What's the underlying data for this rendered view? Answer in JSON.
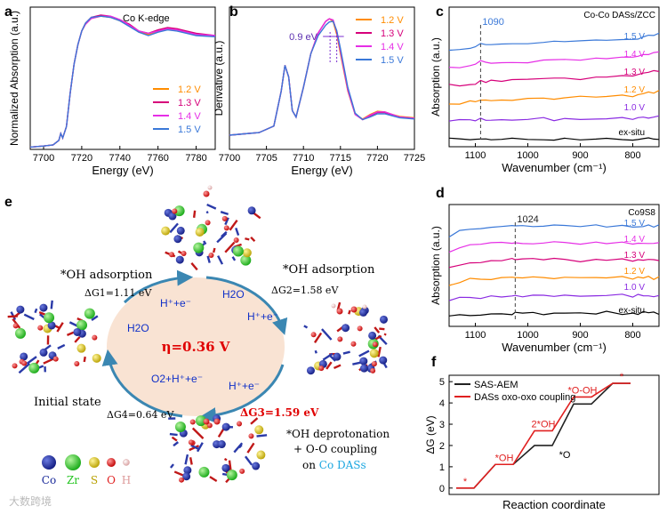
{
  "panels": {
    "a": "a",
    "b": "b",
    "c": "c",
    "d": "d",
    "e": "e",
    "f": "f"
  },
  "watermark": "大数跨境",
  "chart_data": [
    {
      "id": "a",
      "type": "line",
      "title": "Co K-edge",
      "xlabel": "Energy (eV)",
      "ylabel": "Normalized Absorption (a.u.)",
      "xlim": [
        7693,
        7790
      ],
      "ylim": [
        0,
        1.25
      ],
      "xticks": [
        7700,
        7720,
        7740,
        7760,
        7780
      ],
      "x": [
        7693,
        7700,
        7705,
        7708,
        7709,
        7710,
        7712,
        7714,
        7716,
        7718,
        7720,
        7722,
        7725,
        7730,
        7735,
        7740,
        7745,
        7750,
        7755,
        7760,
        7765,
        7770,
        7775,
        7780,
        7790
      ],
      "series": [
        {
          "name": "1.2 V",
          "color": "#ff8c00",
          "values": [
            0.02,
            0.03,
            0.04,
            0.08,
            0.14,
            0.1,
            0.2,
            0.5,
            0.75,
            0.92,
            1.04,
            1.1,
            1.15,
            1.17,
            1.16,
            1.13,
            1.09,
            1.03,
            1.01,
            1.04,
            1.06,
            1.05,
            1.03,
            1.01,
            1.0
          ]
        },
        {
          "name": "1.3 V",
          "color": "#d6007a",
          "values": [
            0.02,
            0.03,
            0.04,
            0.08,
            0.14,
            0.1,
            0.2,
            0.5,
            0.75,
            0.92,
            1.04,
            1.11,
            1.16,
            1.18,
            1.17,
            1.14,
            1.1,
            1.04,
            1.02,
            1.05,
            1.07,
            1.06,
            1.04,
            1.02,
            1.0
          ]
        },
        {
          "name": "1.4 V",
          "color": "#e62ee6",
          "values": [
            0.02,
            0.03,
            0.04,
            0.08,
            0.14,
            0.1,
            0.2,
            0.5,
            0.75,
            0.92,
            1.04,
            1.1,
            1.15,
            1.17,
            1.17,
            1.14,
            1.09,
            1.04,
            1.02,
            1.04,
            1.06,
            1.05,
            1.03,
            1.01,
            1.0
          ]
        },
        {
          "name": "1.5 V",
          "color": "#3a78d8",
          "values": [
            0.02,
            0.03,
            0.04,
            0.08,
            0.14,
            0.1,
            0.2,
            0.5,
            0.75,
            0.92,
            1.04,
            1.11,
            1.16,
            1.17,
            1.16,
            1.13,
            1.08,
            1.03,
            1.0,
            1.03,
            1.05,
            1.04,
            1.02,
            1.0,
            0.99
          ]
        }
      ]
    },
    {
      "id": "b",
      "type": "line",
      "xlabel": "Energy (eV)",
      "ylabel": "Derivative (a.u.)",
      "xlim": [
        7700,
        7725
      ],
      "ylim": [
        -1,
        10
      ],
      "xticks": [
        7700,
        7705,
        7710,
        7715,
        7720,
        7725
      ],
      "annotation": "0.9 eV",
      "x": [
        7700,
        7702,
        7704,
        7706,
        7707,
        7707.5,
        7708,
        7708.5,
        7709,
        7710,
        7711,
        7712,
        7713,
        7713.5,
        7714,
        7714.5,
        7715,
        7716,
        7717,
        7718,
        7719,
        7720,
        7721,
        7722,
        7723,
        7725
      ],
      "series": [
        {
          "name": "1.2 V",
          "color": "#ff8c00",
          "values": [
            0.1,
            0.2,
            0.3,
            0.8,
            3.5,
            5.5,
            4.6,
            2,
            1.5,
            3.8,
            6.4,
            8,
            8.9,
            9.1,
            8.9,
            7.9,
            6.4,
            3.5,
            1.7,
            1.35,
            1.7,
            1.95,
            1.9,
            1.7,
            1.55,
            1.45
          ]
        },
        {
          "name": "1.3 V",
          "color": "#d6007a",
          "values": [
            0.1,
            0.2,
            0.3,
            0.8,
            3.5,
            5.5,
            4.6,
            2,
            1.5,
            3.8,
            6.4,
            8,
            8.9,
            9.1,
            9,
            8.1,
            6.6,
            3.6,
            1.7,
            1.3,
            1.6,
            1.85,
            1.85,
            1.65,
            1.5,
            1.4
          ]
        },
        {
          "name": "1.4 V",
          "color": "#e62ee6",
          "values": [
            0.1,
            0.2,
            0.3,
            0.8,
            3.5,
            5.5,
            4.6,
            2,
            1.5,
            3.8,
            6.4,
            8,
            8.9,
            9.1,
            9,
            8.1,
            6.6,
            3.6,
            1.7,
            1.3,
            1.65,
            1.9,
            1.9,
            1.7,
            1.5,
            1.4
          ]
        },
        {
          "name": "1.5 V",
          "color": "#3a78d8",
          "values": [
            0.1,
            0.2,
            0.3,
            0.8,
            3.5,
            5.5,
            4.6,
            2,
            1.5,
            3.8,
            6.4,
            7.8,
            8.6,
            8.85,
            8.9,
            8.2,
            6.8,
            3.8,
            1.8,
            1.3,
            1.5,
            1.75,
            1.75,
            1.6,
            1.45,
            1.35
          ]
        }
      ]
    },
    {
      "id": "c",
      "type": "line",
      "title": "Co-Co DASs/ZCC",
      "xlabel": "Wavenumber (cm⁻¹)",
      "ylabel": "Absorption (a.u.)",
      "xlim": [
        1150,
        750
      ],
      "xticks": [
        1100,
        1000,
        900,
        800
      ],
      "marker": "1090",
      "x": [
        1150,
        1130,
        1110,
        1100,
        1090,
        1080,
        1070,
        1050,
        1030,
        1000,
        970,
        950,
        930,
        900,
        870,
        850,
        820,
        800,
        790,
        780,
        770,
        760,
        750
      ],
      "series": [
        {
          "name": "ex-situ",
          "color": "#000000",
          "values": [
            0.02,
            0.01,
            0.02,
            0.01,
            0.02,
            0.01,
            0.02,
            0.01,
            0.02,
            0.01,
            0.02,
            0.01,
            0.02,
            0.01,
            0.02,
            0.01,
            0.02,
            0.01,
            0.02,
            0.01,
            0.02,
            0.01,
            0.02
          ]
        },
        {
          "name": "1.0 V",
          "color": "#8a2be2",
          "values": [
            0.02,
            0.02,
            0.03,
            0.03,
            0.04,
            0.03,
            0.03,
            0.03,
            0.04,
            0.03,
            0.04,
            0.03,
            0.04,
            0.03,
            0.04,
            0.03,
            0.04,
            0.04,
            0.04,
            0.05,
            0.05,
            0.06,
            0.07
          ]
        },
        {
          "name": "1.2 V",
          "color": "#ff8c00",
          "values": [
            0.02,
            0.02,
            0.03,
            0.03,
            0.06,
            0.04,
            0.04,
            0.05,
            0.05,
            0.06,
            0.06,
            0.07,
            0.07,
            0.08,
            0.08,
            0.08,
            0.09,
            0.09,
            0.1,
            0.11,
            0.12,
            0.13,
            0.14
          ]
        },
        {
          "name": "1.3 V",
          "color": "#d6007a",
          "values": [
            0.02,
            0.02,
            0.03,
            0.04,
            0.07,
            0.05,
            0.06,
            0.06,
            0.07,
            0.07,
            0.08,
            0.08,
            0.09,
            0.09,
            0.1,
            0.1,
            0.11,
            0.12,
            0.13,
            0.14,
            0.15,
            0.16,
            0.17
          ]
        },
        {
          "name": "1.4 V",
          "color": "#e62ee6",
          "values": [
            0.02,
            0.02,
            0.03,
            0.05,
            0.08,
            0.06,
            0.07,
            0.07,
            0.08,
            0.08,
            0.09,
            0.09,
            0.1,
            0.1,
            0.11,
            0.11,
            0.12,
            0.13,
            0.14,
            0.15,
            0.16,
            0.17,
            0.18
          ]
        },
        {
          "name": "1.5 V",
          "color": "#3a78d8",
          "values": [
            0.02,
            0.02,
            0.04,
            0.06,
            0.09,
            0.07,
            0.07,
            0.08,
            0.08,
            0.09,
            0.09,
            0.1,
            0.1,
            0.11,
            0.11,
            0.12,
            0.12,
            0.13,
            0.14,
            0.15,
            0.16,
            0.17,
            0.18
          ]
        }
      ]
    },
    {
      "id": "d",
      "type": "line",
      "title": "Co9S8",
      "xlabel": "Wavenumber (cm⁻¹)",
      "ylabel": "Absorption (a.u.)",
      "xlim": [
        1150,
        750
      ],
      "xticks": [
        1100,
        1000,
        900,
        800
      ],
      "marker": "1024",
      "x": [
        1150,
        1130,
        1110,
        1090,
        1070,
        1050,
        1030,
        1024,
        1010,
        990,
        970,
        950,
        930,
        900,
        870,
        850,
        820,
        800,
        790,
        780,
        770,
        760,
        750
      ],
      "series": [
        {
          "name": "ex-situ",
          "color": "#000000",
          "values": [
            0.02,
            0.03,
            0.04,
            0.03,
            0.05,
            0.04,
            0.05,
            0.06,
            0.05,
            0.06,
            0.05,
            0.06,
            0.05,
            0.06,
            0.05,
            0.06,
            0.05,
            0.06,
            0.05,
            0.06,
            0.05,
            0.06,
            0.05
          ]
        },
        {
          "name": "1.0 V",
          "color": "#8a2be2",
          "values": [
            0.02,
            0.04,
            0.05,
            0.05,
            0.06,
            0.06,
            0.07,
            0.07,
            0.07,
            0.07,
            0.06,
            0.07,
            0.07,
            0.06,
            0.07,
            0.06,
            0.07,
            0.06,
            0.07,
            0.06,
            0.07,
            0.06,
            0.07
          ]
        },
        {
          "name": "1.2 V",
          "color": "#ff8c00",
          "values": [
            0.02,
            0.05,
            0.07,
            0.07,
            0.08,
            0.08,
            0.09,
            0.09,
            0.09,
            0.09,
            0.08,
            0.09,
            0.09,
            0.08,
            0.09,
            0.08,
            0.09,
            0.08,
            0.09,
            0.08,
            0.09,
            0.08,
            0.09
          ]
        },
        {
          "name": "1.3 V",
          "color": "#d6007a",
          "values": [
            0.02,
            0.06,
            0.08,
            0.09,
            0.1,
            0.1,
            0.11,
            0.11,
            0.11,
            0.11,
            0.1,
            0.11,
            0.11,
            0.1,
            0.11,
            0.1,
            0.11,
            0.1,
            0.11,
            0.1,
            0.11,
            0.1,
            0.11
          ]
        },
        {
          "name": "1.4 V",
          "color": "#e62ee6",
          "values": [
            0.02,
            0.07,
            0.09,
            0.1,
            0.11,
            0.11,
            0.12,
            0.12,
            0.12,
            0.12,
            0.11,
            0.12,
            0.12,
            0.11,
            0.12,
            0.11,
            0.12,
            0.11,
            0.12,
            0.11,
            0.12,
            0.11,
            0.12
          ]
        },
        {
          "name": "1.5 V",
          "color": "#3a78d8",
          "values": [
            0.02,
            0.08,
            0.1,
            0.11,
            0.12,
            0.12,
            0.13,
            0.13,
            0.13,
            0.13,
            0.12,
            0.13,
            0.13,
            0.12,
            0.13,
            0.12,
            0.13,
            0.12,
            0.13,
            0.12,
            0.13,
            0.12,
            0.13
          ]
        }
      ]
    },
    {
      "id": "f",
      "type": "line",
      "xlabel": "Reaction coordinate",
      "ylabel": "ΔG (eV)",
      "ylim": [
        -0.3,
        5.3
      ],
      "yticks": [
        0,
        1,
        2,
        3,
        4,
        5
      ],
      "steps": [
        "*",
        "*OH",
        "2*OH",
        "*O-OH",
        "*"
      ],
      "series": [
        {
          "name": "SAS-AEM",
          "color": "#222222",
          "values": [
            0,
            1.11,
            2.0,
            3.95,
            4.92
          ]
        },
        {
          "name": "DASs oxo-oxo coupling",
          "color": "#e02020",
          "values": [
            0,
            1.11,
            2.69,
            4.28,
            4.92
          ]
        }
      ],
      "labels": {
        "s0": "*",
        "s1": "*OH",
        "s2": "2*OH",
        "s3": "*O-OH",
        "s4": "*",
        "sasLabel": "*O"
      }
    }
  ],
  "scheme": {
    "center": "η=0.36 V",
    "h2o_left": "H2O",
    "h2o_top": "H2O",
    "proton_top_left": "H⁺+e⁻",
    "proton_top_right": "H⁺+e⁻",
    "proton_right": "H⁺+e⁻",
    "o2_release": "O2+H⁺+e⁻",
    "step1_title": "*OH adsorption",
    "step1_dg": "ΔG1=1.11 eV",
    "step2_title": "*OH adsorption",
    "step2_dg": "ΔG2=1.58 eV",
    "step3_dg": "ΔG3=1.59 eV",
    "step4_dg": "ΔG4=0.64 eV",
    "initial_state": "Initial state",
    "deprot_line1": "*OH deprotonation",
    "deprot_line2": "+ O-O coupling",
    "deprot_line3_pre": "on ",
    "deprot_line3_hl": "Co DASs",
    "legend": [
      {
        "label": "Co",
        "color": "#1a2a9a"
      },
      {
        "label": "Zr",
        "color": "#22c41f"
      },
      {
        "label": "S",
        "color": "#d4c000"
      },
      {
        "label": "O",
        "color": "#e02020"
      },
      {
        "label": "H",
        "color": "#f0b8b8"
      }
    ],
    "colors": {
      "ellipse": "#f9e3d3",
      "arrow": "#3b87b2",
      "blue_text": "#1030c8",
      "red_text": "#e00000",
      "cyan_text": "#1aa6e0"
    }
  }
}
